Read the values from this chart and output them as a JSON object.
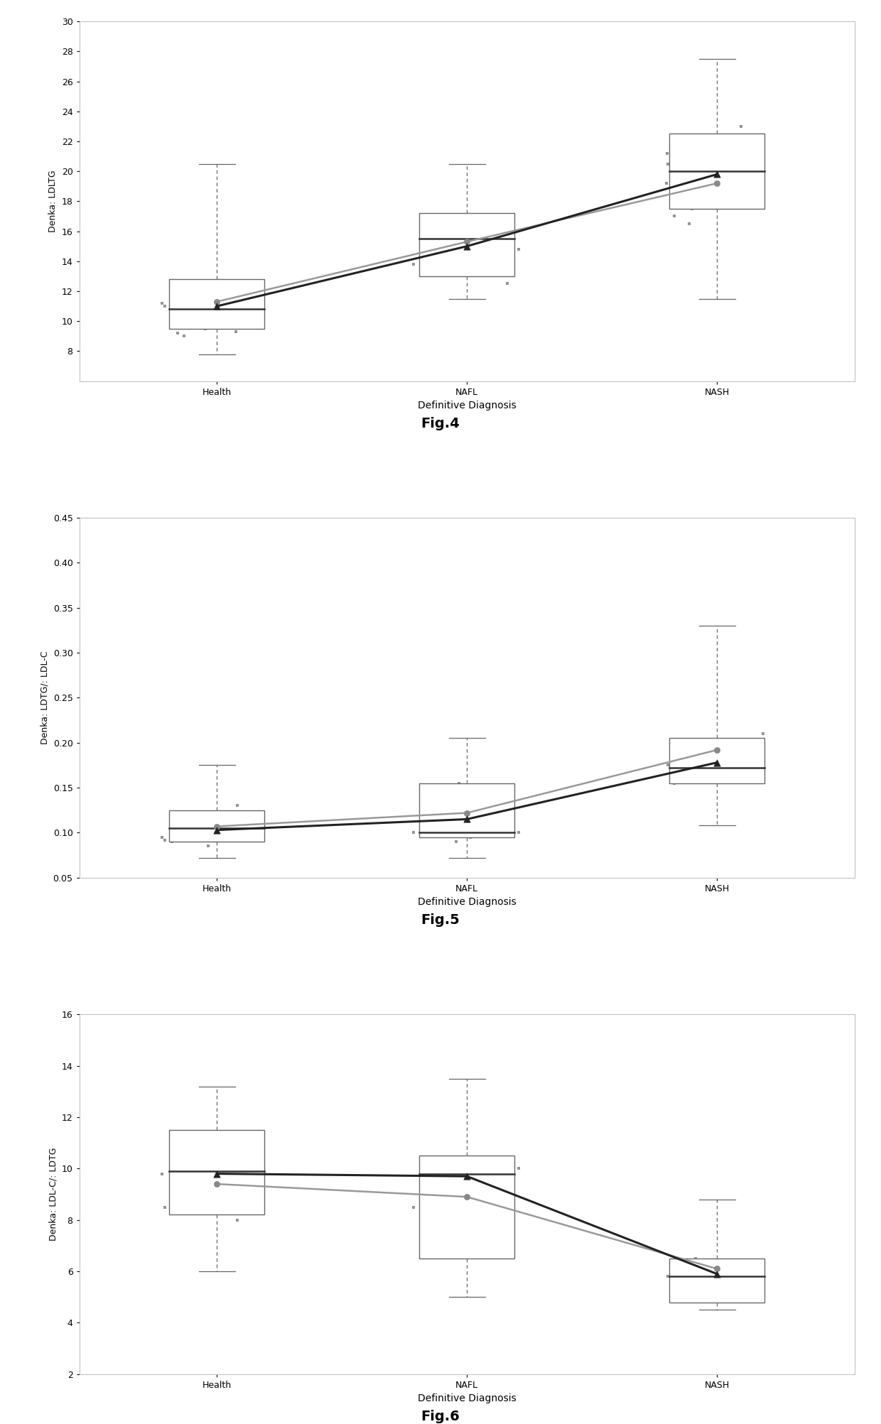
{
  "fig4": {
    "title": "Fig.4",
    "ylabel": "Denka: LDLTG",
    "xlabel": "Definitive Diagnosis",
    "categories": [
      "Health",
      "NAFL",
      "NASH"
    ],
    "ylim": [
      6,
      30
    ],
    "yticks": [
      8,
      10,
      12,
      14,
      16,
      18,
      20,
      22,
      24,
      26,
      28,
      30
    ],
    "boxes": [
      {
        "q1": 9.5,
        "median": 10.8,
        "q3": 12.8,
        "whisker_low": 7.8,
        "whisker_high": 20.5
      },
      {
        "q1": 13.0,
        "median": 15.5,
        "q3": 17.2,
        "whisker_low": 11.5,
        "whisker_high": 20.5
      },
      {
        "q1": 17.5,
        "median": 20.0,
        "q3": 22.5,
        "whisker_low": 11.5,
        "whisker_high": 27.5
      }
    ],
    "mean_line1": [
      11.0,
      15.0,
      19.8
    ],
    "mean_line2": [
      11.3,
      15.3,
      19.2
    ],
    "scatter_points": [
      [
        10.5,
        9.8,
        11.2,
        10.0,
        9.2,
        10.8,
        11.5,
        12.0,
        9.5,
        10.2,
        12.5,
        11.8,
        9.0,
        10.0,
        11.0,
        9.3,
        10.7,
        11.3,
        9.8,
        12.2
      ],
      [
        13.5,
        14.8,
        12.5,
        15.2,
        16.0,
        13.8,
        14.5,
        13.2,
        15.5,
        16.5,
        14.0,
        15.0
      ],
      [
        19.5,
        18.0,
        20.5,
        21.0,
        17.5,
        19.0,
        22.0,
        18.5,
        17.0,
        16.5,
        20.0,
        21.5,
        23.0,
        19.8,
        17.8,
        20.8,
        18.2,
        21.2,
        19.2
      ]
    ]
  },
  "fig5": {
    "title": "Fig.5",
    "ylabel": "Denka: LDTG/: LDL-C",
    "xlabel": "Definitive Diagnosis",
    "categories": [
      "Health",
      "NAFL",
      "NASH"
    ],
    "ylim": [
      0.05,
      0.45
    ],
    "yticks": [
      0.05,
      0.1,
      0.15,
      0.2,
      0.25,
      0.3,
      0.35,
      0.4,
      0.45
    ],
    "boxes": [
      {
        "q1": 0.09,
        "median": 0.105,
        "q3": 0.125,
        "whisker_low": 0.072,
        "whisker_high": 0.175
      },
      {
        "q1": 0.095,
        "median": 0.1,
        "q3": 0.155,
        "whisker_low": 0.072,
        "whisker_high": 0.205
      },
      {
        "q1": 0.155,
        "median": 0.172,
        "q3": 0.205,
        "whisker_low": 0.108,
        "whisker_high": 0.33
      }
    ],
    "mean_line1": [
      0.103,
      0.115,
      0.178
    ],
    "mean_line2": [
      0.107,
      0.122,
      0.192
    ],
    "scatter_points": [
      [
        0.1,
        0.115,
        0.095,
        0.12,
        0.1,
        0.09,
        0.11,
        0.12,
        0.105,
        0.095,
        0.085,
        0.13,
        0.1,
        0.11,
        0.092,
        0.118
      ],
      [
        0.12,
        0.1,
        0.13,
        0.095,
        0.115,
        0.1,
        0.155,
        0.09,
        0.125,
        0.105
      ],
      [
        0.19,
        0.2,
        0.175,
        0.165,
        0.185,
        0.195,
        0.17,
        0.16,
        0.155,
        0.2,
        0.21,
        0.185,
        0.168,
        0.195
      ]
    ]
  },
  "fig6": {
    "title": "Fig.6",
    "ylabel": "Denka: LDL-C/: LDTG",
    "xlabel": "Definitive Diagnosis",
    "categories": [
      "Health",
      "NAFL",
      "NASH"
    ],
    "ylim": [
      2,
      16
    ],
    "yticks": [
      2,
      4,
      6,
      8,
      10,
      12,
      14,
      16
    ],
    "boxes": [
      {
        "q1": 8.2,
        "median": 9.9,
        "q3": 11.5,
        "whisker_low": 6.0,
        "whisker_high": 13.2
      },
      {
        "q1": 6.5,
        "median": 9.8,
        "q3": 10.5,
        "whisker_low": 5.0,
        "whisker_high": 13.5
      },
      {
        "q1": 4.8,
        "median": 5.8,
        "q3": 6.5,
        "whisker_low": 4.5,
        "whisker_high": 8.8
      }
    ],
    "mean_line1": [
      9.8,
      9.7,
      5.9
    ],
    "mean_line2": [
      9.4,
      8.9,
      6.1
    ],
    "scatter_points": [
      [
        9.5,
        10.0,
        9.8,
        8.5,
        9.2,
        10.5,
        11.0,
        9.0,
        8.8,
        9.5,
        10.2,
        8.0,
        9.8,
        11.2,
        8.5,
        9.0,
        10.8,
        9.3,
        8.3,
        10.0
      ],
      [
        9.8,
        10.0,
        8.9,
        9.5,
        9.2,
        8.5,
        10.2,
        9.0,
        8.8,
        9.6
      ],
      [
        5.5,
        6.0,
        5.8,
        6.2,
        5.3,
        5.9,
        6.5,
        5.0,
        5.8,
        6.1,
        5.5,
        5.2,
        6.4,
        5.0,
        5.6,
        5.3
      ]
    ]
  },
  "bg_color": "#ffffff",
  "box_facecolor": "#ffffff",
  "box_edge_color": "#666666",
  "median_color": "#333333",
  "whisker_color": "#666666",
  "scatter_color": "#888888",
  "line1_color": "#222222",
  "line2_color": "#999999",
  "mean_marker1_color": "#222222",
  "mean_marker2_color": "#888888"
}
